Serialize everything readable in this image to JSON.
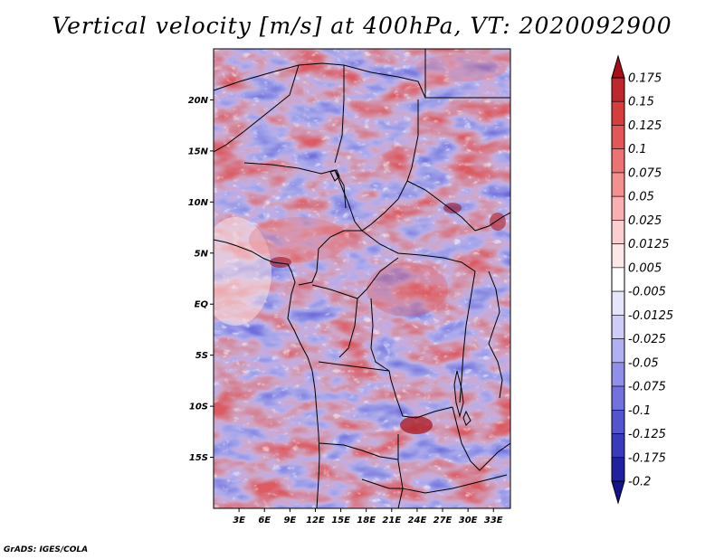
{
  "title": "Vertical velocity [m/s] at 400hPa, VT: 2020092900",
  "credit": "GrADS: IGES/COLA",
  "lat_ticks": [
    "20N",
    "15N",
    "10N",
    "5N",
    "EQ",
    "5S",
    "10S",
    "15S"
  ],
  "lon_ticks": [
    "3E",
    "6E",
    "9E",
    "12E",
    "15E",
    "18E",
    "21E",
    "24E",
    "27E",
    "30E",
    "33E"
  ],
  "extent": {
    "lon": [
      0,
      35
    ],
    "lat": [
      -20,
      25
    ]
  },
  "colorbar": {
    "levels": [
      "0.175",
      "0.15",
      "0.125",
      "0.1",
      "0.075",
      "0.05",
      "0.025",
      "0.0125",
      "0.005",
      "-0.005",
      "-0.0125",
      "-0.025",
      "-0.05",
      "-0.075",
      "-0.1",
      "-0.125",
      "-0.175",
      "-0.2"
    ],
    "colors": [
      "#a50f15",
      "#c0262d",
      "#d63e3e",
      "#e25757",
      "#ec7373",
      "#f39090",
      "#f8b0b0",
      "#fbcfcf",
      "#fde8e8",
      "#ffffff",
      "#e6e6fb",
      "#cdcdf7",
      "#b0b0f2",
      "#9090ea",
      "#7272de",
      "#5454cf",
      "#3a3abd",
      "#2020a0",
      "#14148a"
    ]
  }
}
